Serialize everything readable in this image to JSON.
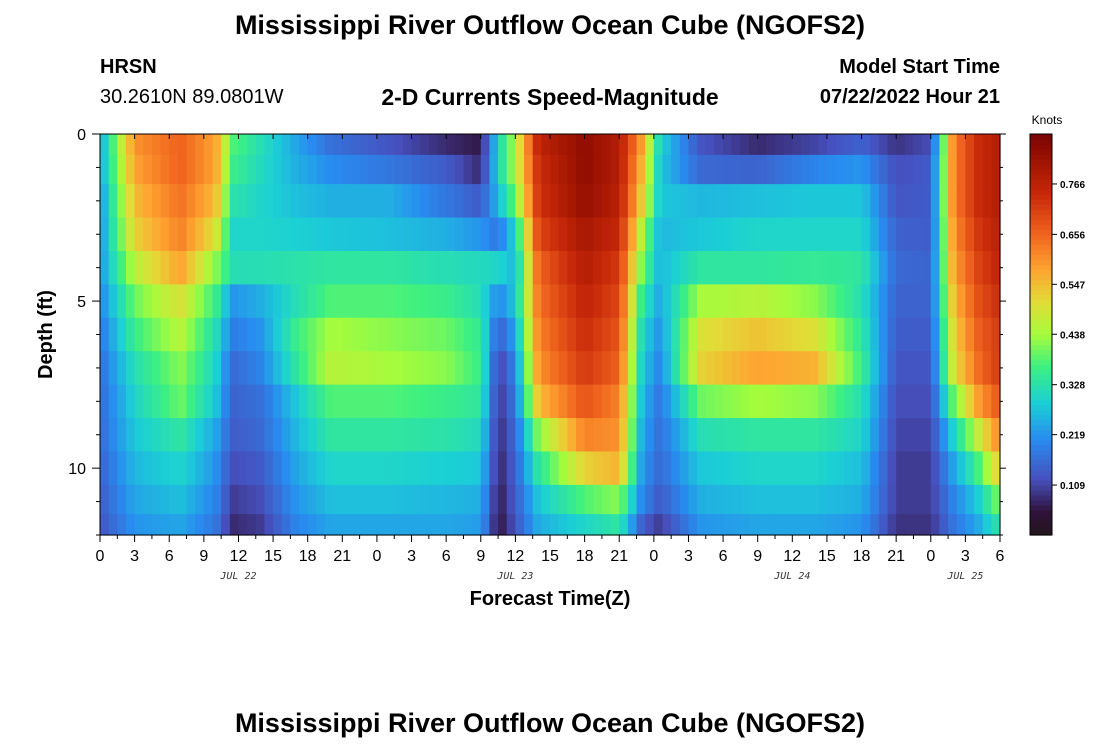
{
  "header": {
    "main_title": "Mississippi River Outflow Ocean Cube (NGOFS2)",
    "station_name": "HRSN",
    "station_coords": "30.2610N  89.0801W",
    "plot_title": "2-D Currents Speed-Magnitude",
    "model_start_label": "Model Start Time",
    "model_start_value": "07/22/2022 Hour 21"
  },
  "footer": {
    "title": "Mississippi River Outflow Ocean Cube (NGOFS2)"
  },
  "chart_data": {
    "type": "heatmap",
    "title": "2-D Currents Speed-Magnitude",
    "xlabel": "Forecast Time(Z)",
    "ylabel": "Depth (ft)",
    "x_hours_since_start": [
      0,
      78
    ],
    "x_tick_labels": [
      "0",
      "3",
      "6",
      "9",
      "12",
      "15",
      "18",
      "21",
      "0",
      "3",
      "6",
      "9",
      "12",
      "15",
      "18",
      "21",
      "0",
      "3",
      "6",
      "9",
      "12",
      "15",
      "18",
      "21",
      "0",
      "3",
      "6"
    ],
    "date_labels": [
      {
        "label": "JUL 22",
        "hour": 12
      },
      {
        "label": "JUL 23",
        "hour": 36
      },
      {
        "label": "JUL 24",
        "hour": 60
      },
      {
        "label": "JUL 25",
        "hour": 75
      }
    ],
    "ylim": [
      0,
      12
    ],
    "y_tick_labels": [
      "0",
      "5",
      "10"
    ],
    "y_ticks": [
      0,
      5,
      10
    ],
    "depth_levels_ft": [
      0.25,
      1,
      2,
      3,
      4,
      5,
      6,
      7,
      8,
      9,
      10,
      11,
      11.75
    ],
    "colorbar": {
      "unit": "Knots",
      "range": [
        0.0,
        0.875
      ],
      "ticks": [
        0.109,
        0.219,
        0.328,
        0.438,
        0.547,
        0.656,
        0.766
      ],
      "tick_labels": [
        "0.109",
        "0.219",
        "0.328",
        "0.438",
        "0.547",
        "0.656",
        "0.766"
      ]
    },
    "speed_anchors_knots": {
      "hours": [
        0,
        3,
        7,
        10,
        11.5,
        14,
        17,
        20,
        25,
        30,
        33,
        34.5,
        36,
        38,
        42,
        45,
        47,
        48.5,
        52,
        57,
        62,
        66,
        69,
        72,
        74,
        76,
        78
      ],
      "by_depth": [
        [
          0.24,
          0.6,
          0.66,
          0.58,
          0.38,
          0.32,
          0.24,
          0.17,
          0.13,
          0.08,
          0.06,
          0.3,
          0.45,
          0.76,
          0.84,
          0.78,
          0.58,
          0.3,
          0.13,
          0.08,
          0.11,
          0.15,
          0.09,
          0.12,
          0.62,
          0.74,
          0.78
        ],
        [
          0.24,
          0.58,
          0.66,
          0.58,
          0.36,
          0.31,
          0.25,
          0.21,
          0.18,
          0.14,
          0.08,
          0.3,
          0.45,
          0.74,
          0.84,
          0.78,
          0.55,
          0.28,
          0.16,
          0.15,
          0.2,
          0.22,
          0.12,
          0.14,
          0.62,
          0.74,
          0.78
        ],
        [
          0.22,
          0.55,
          0.64,
          0.55,
          0.33,
          0.3,
          0.27,
          0.25,
          0.25,
          0.18,
          0.14,
          0.26,
          0.4,
          0.73,
          0.83,
          0.77,
          0.52,
          0.28,
          0.26,
          0.27,
          0.28,
          0.28,
          0.13,
          0.14,
          0.62,
          0.74,
          0.78
        ],
        [
          0.22,
          0.52,
          0.62,
          0.5,
          0.3,
          0.3,
          0.29,
          0.28,
          0.27,
          0.25,
          0.22,
          0.18,
          0.3,
          0.7,
          0.8,
          0.75,
          0.45,
          0.26,
          0.28,
          0.3,
          0.3,
          0.3,
          0.15,
          0.14,
          0.6,
          0.72,
          0.77
        ],
        [
          0.22,
          0.46,
          0.58,
          0.42,
          0.32,
          0.32,
          0.33,
          0.34,
          0.34,
          0.32,
          0.31,
          0.3,
          0.26,
          0.66,
          0.78,
          0.72,
          0.4,
          0.26,
          0.34,
          0.34,
          0.35,
          0.34,
          0.16,
          0.15,
          0.58,
          0.7,
          0.76
        ],
        [
          0.2,
          0.4,
          0.5,
          0.36,
          0.22,
          0.25,
          0.32,
          0.38,
          0.38,
          0.36,
          0.32,
          0.2,
          0.28,
          0.64,
          0.76,
          0.7,
          0.34,
          0.24,
          0.44,
          0.46,
          0.42,
          0.32,
          0.15,
          0.15,
          0.55,
          0.68,
          0.74
        ],
        [
          0.18,
          0.36,
          0.46,
          0.32,
          0.19,
          0.22,
          0.36,
          0.44,
          0.42,
          0.4,
          0.35,
          0.14,
          0.24,
          0.62,
          0.74,
          0.68,
          0.3,
          0.22,
          0.5,
          0.54,
          0.5,
          0.34,
          0.14,
          0.14,
          0.52,
          0.66,
          0.72
        ],
        [
          0.17,
          0.32,
          0.42,
          0.3,
          0.16,
          0.2,
          0.34,
          0.46,
          0.44,
          0.42,
          0.36,
          0.1,
          0.2,
          0.6,
          0.72,
          0.66,
          0.28,
          0.2,
          0.52,
          0.58,
          0.56,
          0.36,
          0.13,
          0.13,
          0.5,
          0.64,
          0.72
        ],
        [
          0.16,
          0.3,
          0.4,
          0.28,
          0.15,
          0.17,
          0.28,
          0.38,
          0.38,
          0.36,
          0.34,
          0.09,
          0.18,
          0.55,
          0.68,
          0.62,
          0.26,
          0.18,
          0.4,
          0.44,
          0.42,
          0.32,
          0.12,
          0.12,
          0.4,
          0.58,
          0.68
        ],
        [
          0.16,
          0.28,
          0.34,
          0.24,
          0.14,
          0.16,
          0.26,
          0.34,
          0.34,
          0.33,
          0.31,
          0.08,
          0.16,
          0.42,
          0.62,
          0.6,
          0.24,
          0.17,
          0.32,
          0.34,
          0.34,
          0.3,
          0.11,
          0.11,
          0.3,
          0.46,
          0.62
        ],
        [
          0.15,
          0.26,
          0.3,
          0.22,
          0.12,
          0.14,
          0.24,
          0.3,
          0.3,
          0.29,
          0.28,
          0.07,
          0.15,
          0.34,
          0.52,
          0.56,
          0.22,
          0.16,
          0.28,
          0.3,
          0.3,
          0.27,
          0.1,
          0.1,
          0.24,
          0.36,
          0.54
        ],
        [
          0.14,
          0.24,
          0.27,
          0.2,
          0.1,
          0.12,
          0.22,
          0.27,
          0.27,
          0.26,
          0.25,
          0.06,
          0.14,
          0.28,
          0.38,
          0.42,
          0.2,
          0.14,
          0.25,
          0.27,
          0.27,
          0.25,
          0.1,
          0.1,
          0.2,
          0.28,
          0.42
        ],
        [
          0.13,
          0.22,
          0.24,
          0.18,
          0.08,
          0.1,
          0.2,
          0.24,
          0.24,
          0.24,
          0.23,
          0.05,
          0.13,
          0.25,
          0.3,
          0.34,
          0.14,
          0.1,
          0.22,
          0.24,
          0.24,
          0.22,
          0.09,
          0.09,
          0.18,
          0.24,
          0.34
        ]
      ]
    }
  }
}
